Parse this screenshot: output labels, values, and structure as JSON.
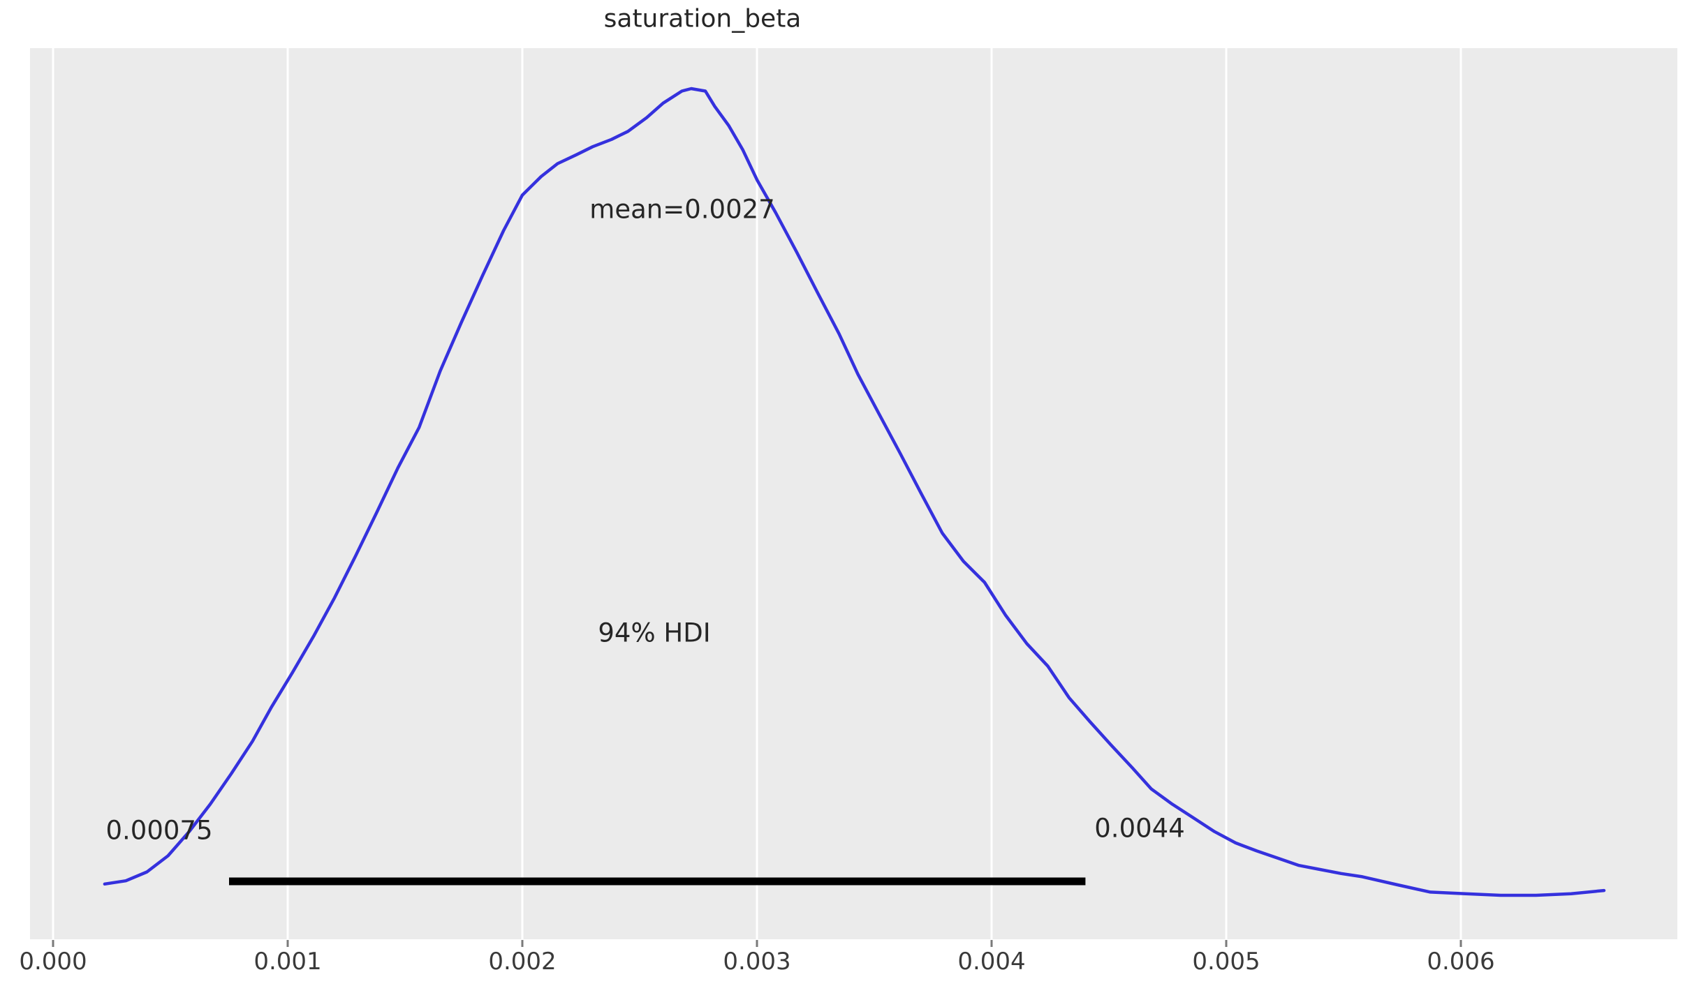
{
  "chart_data": {
    "type": "line",
    "title": "saturation_beta",
    "xlabel": "",
    "ylabel": "",
    "legend": null,
    "grid": "vertical-white-on-gray",
    "plot_bg_color": "#ebebeb",
    "grid_color": "#ffffff",
    "curve_color": "#3531dd",
    "hdi_line_color": "#000000",
    "text_color": "#262626",
    "tick_label_color": "#3a3a3a",
    "x_tick_labels": [
      "0.000",
      "0.001",
      "0.002",
      "0.003",
      "0.004",
      "0.005",
      "0.006"
    ],
    "x_tick_values": [
      0,
      0.001,
      0.002,
      0.003,
      0.004,
      0.005,
      0.006
    ],
    "xlim": [
      -0.0001,
      0.00692
    ],
    "ylim": [
      0,
      1.06
    ],
    "mean": 0.0027,
    "hdi": {
      "prob": 0.94,
      "lower": 0.00075,
      "upper": 0.0044
    },
    "annotations": {
      "mean_label": "mean=0.0027",
      "hdi_label": "94% HDI",
      "hdi_lower_label": "0.00075",
      "hdi_upper_label": "0.0044"
    },
    "kde_points": [
      [
        0.00022,
        0.014
      ],
      [
        0.00031,
        0.018
      ],
      [
        0.0004,
        0.029
      ],
      [
        0.00049,
        0.049
      ],
      [
        0.00058,
        0.079
      ],
      [
        0.00067,
        0.113
      ],
      [
        0.00076,
        0.151
      ],
      [
        0.00085,
        0.191
      ],
      [
        0.00093,
        0.233
      ],
      [
        0.00102,
        0.276
      ],
      [
        0.00111,
        0.321
      ],
      [
        0.0012,
        0.369
      ],
      [
        0.00129,
        0.421
      ],
      [
        0.00138,
        0.475
      ],
      [
        0.00147,
        0.53
      ],
      [
        0.00156,
        0.58
      ],
      [
        0.00165,
        0.65
      ],
      [
        0.00174,
        0.71
      ],
      [
        0.00183,
        0.768
      ],
      [
        0.00192,
        0.824
      ],
      [
        0.002,
        0.868
      ],
      [
        0.00208,
        0.891
      ],
      [
        0.00215,
        0.907
      ],
      [
        0.00223,
        0.918
      ],
      [
        0.0023,
        0.928
      ],
      [
        0.00238,
        0.937
      ],
      [
        0.00245,
        0.947
      ],
      [
        0.00253,
        0.964
      ],
      [
        0.0026,
        0.982
      ],
      [
        0.00268,
        0.997
      ],
      [
        0.00272,
        1.0
      ],
      [
        0.00278,
        0.997
      ],
      [
        0.00282,
        0.978
      ],
      [
        0.00288,
        0.954
      ],
      [
        0.00294,
        0.924
      ],
      [
        0.003,
        0.887
      ],
      [
        0.00308,
        0.846
      ],
      [
        0.00317,
        0.797
      ],
      [
        0.00326,
        0.746
      ],
      [
        0.00335,
        0.696
      ],
      [
        0.00343,
        0.646
      ],
      [
        0.00352,
        0.597
      ],
      [
        0.00361,
        0.548
      ],
      [
        0.0037,
        0.498
      ],
      [
        0.00379,
        0.449
      ],
      [
        0.00388,
        0.414
      ],
      [
        0.00397,
        0.388
      ],
      [
        0.00406,
        0.347
      ],
      [
        0.00415,
        0.312
      ],
      [
        0.00424,
        0.284
      ],
      [
        0.00433,
        0.245
      ],
      [
        0.00442,
        0.215
      ],
      [
        0.00451,
        0.186
      ],
      [
        0.0046,
        0.158
      ],
      [
        0.00468,
        0.132
      ],
      [
        0.00477,
        0.113
      ],
      [
        0.00486,
        0.096
      ],
      [
        0.00495,
        0.079
      ],
      [
        0.00504,
        0.065
      ],
      [
        0.00513,
        0.055
      ],
      [
        0.00522,
        0.046
      ],
      [
        0.00531,
        0.037
      ],
      [
        0.0054,
        0.032
      ],
      [
        0.00549,
        0.027
      ],
      [
        0.00558,
        0.023
      ],
      [
        0.00573,
        0.013
      ],
      [
        0.00587,
        0.004
      ],
      [
        0.00602,
        0.002
      ],
      [
        0.00617,
        0.0
      ],
      [
        0.00632,
        0.0
      ],
      [
        0.00647,
        0.002
      ],
      [
        0.00661,
        0.006
      ]
    ]
  }
}
